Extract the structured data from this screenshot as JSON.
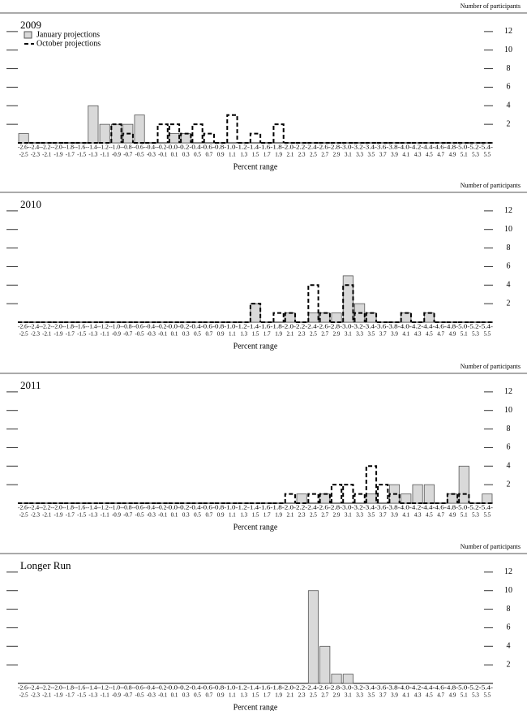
{
  "categories": [
    [
      "-2.6-",
      "-2.5"
    ],
    [
      "-2.4-",
      "-2.3"
    ],
    [
      "-2.2-",
      "-2.1"
    ],
    [
      "-2.0-",
      "-1.9"
    ],
    [
      "-1.8-",
      "-1.7"
    ],
    [
      "-1.6-",
      "-1.5"
    ],
    [
      "-1.4-",
      "-1.3"
    ],
    [
      "-1.2-",
      "-1.1"
    ],
    [
      "-1.0-",
      "-0.9"
    ],
    [
      "-0.8-",
      "-0.7"
    ],
    [
      "-0.6-",
      "-0.5"
    ],
    [
      "-0.4-",
      "-0.3"
    ],
    [
      "-0.2-",
      "-0.1"
    ],
    [
      "0.0-",
      "0.1"
    ],
    [
      "0.2-",
      "0.3"
    ],
    [
      "0.4-",
      "0.5"
    ],
    [
      "0.6-",
      "0.7"
    ],
    [
      "0.8-",
      "0.9"
    ],
    [
      "1.0-",
      "1.1"
    ],
    [
      "1.2-",
      "1.3"
    ],
    [
      "1.4-",
      "1.5"
    ],
    [
      "1.6-",
      "1.7"
    ],
    [
      "1.8-",
      "1.9"
    ],
    [
      "2.0-",
      "2.1"
    ],
    [
      "2.2-",
      "2.3"
    ],
    [
      "2.4-",
      "2.5"
    ],
    [
      "2.6-",
      "2.7"
    ],
    [
      "2.8-",
      "2.9"
    ],
    [
      "3.0-",
      "3.1"
    ],
    [
      "3.2-",
      "3.3"
    ],
    [
      "3.4-",
      "3.5"
    ],
    [
      "3.6-",
      "3.7"
    ],
    [
      "3.8-",
      "3.9"
    ],
    [
      "4.0-",
      "4.1"
    ],
    [
      "4.2-",
      "4.3"
    ],
    [
      "4.4-",
      "4.5"
    ],
    [
      "4.6-",
      "4.7"
    ],
    [
      "4.8-",
      "4.9"
    ],
    [
      "5.0-",
      "5.1"
    ],
    [
      "5.2-",
      "5.3"
    ],
    [
      "5.4-",
      "5.5"
    ]
  ],
  "chart_data": [
    {
      "type": "bar",
      "title": "2009",
      "x_label": "Percent range",
      "y_label": "Number of participants",
      "ylim": [
        0,
        14
      ],
      "yticks": [
        2,
        4,
        6,
        8,
        10,
        12
      ],
      "legend": "upper left",
      "series": [
        {
          "name": "January projections",
          "color": "#d9d9d9",
          "style": "filled",
          "values": [
            1,
            0,
            0,
            0,
            0,
            0,
            4,
            2,
            2,
            2,
            3,
            0,
            0,
            1,
            1,
            0,
            0,
            0,
            0,
            0,
            0,
            0,
            0,
            0,
            0,
            0,
            0,
            0,
            0,
            0,
            0,
            0,
            0,
            0,
            0,
            0,
            0,
            0,
            0,
            0,
            0
          ]
        },
        {
          "name": "October projections",
          "color": "#000000",
          "style": "dashed",
          "values": [
            0,
            0,
            0,
            0,
            0,
            0,
            0,
            0,
            2,
            1,
            0,
            0,
            2,
            2,
            1,
            2,
            1,
            0,
            3,
            0,
            1,
            0,
            2,
            0,
            0,
            0,
            0,
            0,
            0,
            0,
            0,
            0,
            0,
            0,
            0,
            0,
            0,
            0,
            0,
            0,
            0
          ]
        }
      ]
    },
    {
      "type": "bar",
      "title": "2010",
      "x_label": "Percent range",
      "y_label": "Number of participants",
      "ylim": [
        0,
        14
      ],
      "yticks": [
        2,
        4,
        6,
        8,
        10,
        12
      ],
      "series": [
        {
          "color": "#d9d9d9",
          "style": "filled",
          "values": [
            0,
            0,
            0,
            0,
            0,
            0,
            0,
            0,
            0,
            0,
            0,
            0,
            0,
            0,
            0,
            0,
            0,
            0,
            0,
            0,
            2,
            0,
            0,
            1,
            0,
            1,
            1,
            1,
            5,
            2,
            1,
            0,
            0,
            1,
            0,
            1,
            0,
            0,
            0,
            0,
            0
          ]
        },
        {
          "color": "#000000",
          "style": "dashed",
          "values": [
            0,
            0,
            0,
            0,
            0,
            0,
            0,
            0,
            0,
            0,
            0,
            0,
            0,
            0,
            0,
            0,
            0,
            0,
            0,
            0,
            2,
            0,
            1,
            1,
            0,
            4,
            1,
            0,
            4,
            1,
            1,
            0,
            0,
            1,
            0,
            1,
            0,
            0,
            0,
            0,
            0
          ]
        }
      ]
    },
    {
      "type": "bar",
      "title": "2011",
      "x_label": "Percent range",
      "y_label": "Number of participants",
      "ylim": [
        0,
        14
      ],
      "yticks": [
        2,
        4,
        6,
        8,
        10,
        12
      ],
      "series": [
        {
          "color": "#d9d9d9",
          "style": "filled",
          "values": [
            0,
            0,
            0,
            0,
            0,
            0,
            0,
            0,
            0,
            0,
            0,
            0,
            0,
            0,
            0,
            0,
            0,
            0,
            0,
            0,
            0,
            0,
            0,
            0,
            1,
            0,
            1,
            0,
            0,
            0,
            1,
            0,
            2,
            1,
            2,
            2,
            0,
            1,
            4,
            0,
            1
          ]
        },
        {
          "color": "#000000",
          "style": "dashed",
          "values": [
            0,
            0,
            0,
            0,
            0,
            0,
            0,
            0,
            0,
            0,
            0,
            0,
            0,
            0,
            0,
            0,
            0,
            0,
            0,
            0,
            0,
            0,
            0,
            1,
            0,
            1,
            1,
            2,
            2,
            1,
            4,
            2,
            1,
            0,
            0,
            0,
            0,
            1,
            1,
            0,
            0
          ]
        }
      ]
    },
    {
      "type": "bar",
      "title": "Longer Run",
      "x_label": "Percent range",
      "y_label": "Number of participants",
      "ylim": [
        0,
        14
      ],
      "yticks": [
        2,
        4,
        6,
        8,
        10,
        12
      ],
      "series": [
        {
          "color": "#d9d9d9",
          "style": "filled",
          "values": [
            0,
            0,
            0,
            0,
            0,
            0,
            0,
            0,
            0,
            0,
            0,
            0,
            0,
            0,
            0,
            0,
            0,
            0,
            0,
            0,
            0,
            0,
            0,
            0,
            0,
            10,
            4,
            1,
            1,
            0,
            0,
            0,
            0,
            0,
            0,
            0,
            0,
            0,
            0,
            0,
            0
          ]
        }
      ]
    }
  ]
}
